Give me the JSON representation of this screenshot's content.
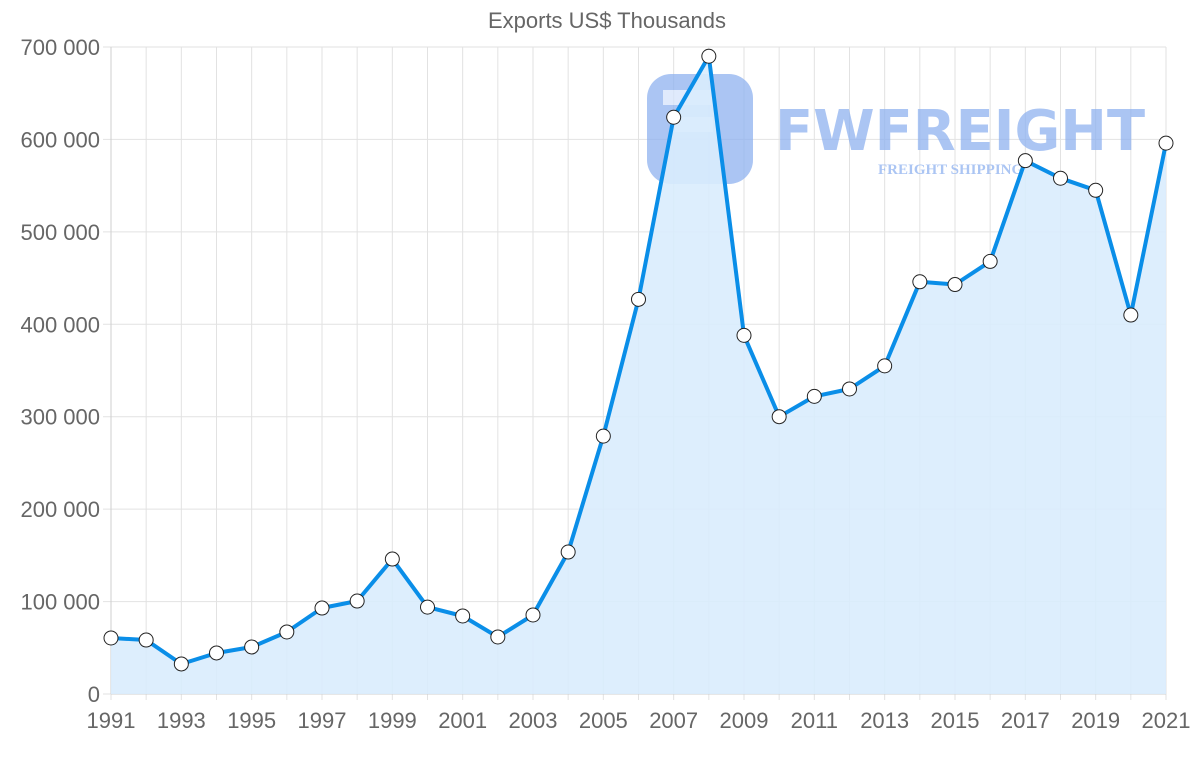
{
  "chart_data": {
    "type": "area",
    "title": "Exports US$ Thousands",
    "xlabel": "",
    "ylabel": "",
    "ylim": [
      0,
      700000
    ],
    "yticks": [
      "0",
      "100 000",
      "200 000",
      "300 000",
      "400 000",
      "500 000",
      "600 000",
      "700 000"
    ],
    "xtick_labels": [
      "1991",
      "1993",
      "1995",
      "1997",
      "1999",
      "2001",
      "2003",
      "2005",
      "2007",
      "2009",
      "2011",
      "2013",
      "2015",
      "2017",
      "2019",
      "2021"
    ],
    "grid": true,
    "legend": null,
    "x": [
      1991,
      1992,
      1993,
      1994,
      1995,
      1996,
      1997,
      1998,
      1999,
      2000,
      2001,
      2002,
      2003,
      2004,
      2005,
      2006,
      2007,
      2008,
      2009,
      2010,
      2011,
      2012,
      2013,
      2014,
      2015,
      2016,
      2017,
      2018,
      2019,
      2020,
      2021
    ],
    "series": [
      {
        "name": "Exports US$ Thousands",
        "color": "#0a8ee8",
        "fill": "#d9ecfd",
        "values": [
          60600,
          58400,
          32500,
          44400,
          50900,
          67100,
          93000,
          100600,
          146000,
          94000,
          84400,
          61700,
          85500,
          153600,
          279000,
          427000,
          624000,
          690000,
          388000,
          300000,
          322000,
          330000,
          355000,
          446000,
          443000,
          468000,
          577000,
          558000,
          545000,
          410000,
          596000
        ]
      }
    ]
  },
  "watermark": {
    "brand": "FWFREIGHT",
    "tagline": "FREIGHT SHIPPING",
    "color": "#8fb2f0"
  }
}
